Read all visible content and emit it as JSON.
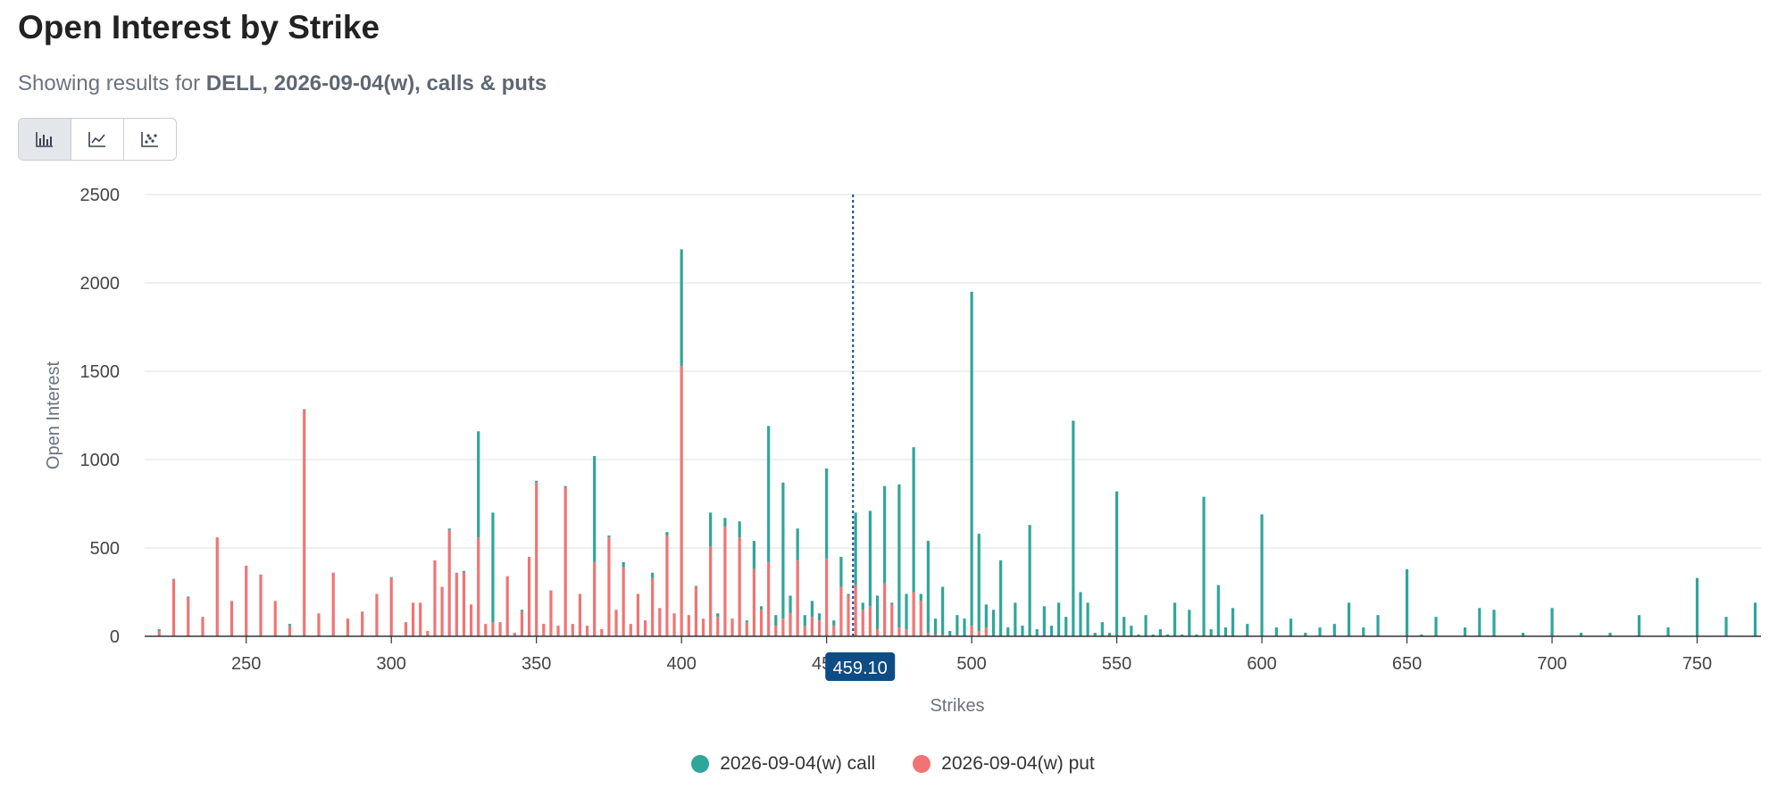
{
  "header": {
    "title": "Open Interest by Strike",
    "subtitle_prefix": "Showing results for",
    "subtitle_bold": "DELL, 2026-09-04(w), calls & puts"
  },
  "toolbar": {
    "buttons": [
      {
        "icon": "bar-chart-icon",
        "active": true
      },
      {
        "icon": "line-chart-icon",
        "active": false
      },
      {
        "icon": "scatter-chart-icon",
        "active": false
      }
    ]
  },
  "colors": {
    "call": "#2fa69a",
    "put": "#f07474",
    "marker": "#0d4c84"
  },
  "marker": {
    "value": 459.1,
    "label": "459.10"
  },
  "legend": {
    "call_label": "2026-09-04(w) call",
    "put_label": "2026-09-04(w) put"
  },
  "chart_data": {
    "type": "bar",
    "stacked": true,
    "xlabel": "Strikes",
    "ylabel": "Open Interest",
    "xlim": [
      215,
      772
    ],
    "ylim": [
      0,
      2500
    ],
    "x_ticks": [
      250,
      300,
      350,
      400,
      450,
      500,
      550,
      600,
      650,
      700,
      750
    ],
    "y_ticks": [
      0,
      500,
      1000,
      1500,
      2000,
      2500
    ],
    "grid": true,
    "legend_position": "bottom-center",
    "series": [
      {
        "name": "2026-09-04(w) put",
        "points": [
          [
            220,
            30
          ],
          [
            225,
            320
          ],
          [
            230,
            220
          ],
          [
            235,
            110
          ],
          [
            240,
            560
          ],
          [
            245,
            200
          ],
          [
            250,
            400
          ],
          [
            255,
            350
          ],
          [
            260,
            200
          ],
          [
            265,
            60
          ],
          [
            270,
            1280
          ],
          [
            275,
            130
          ],
          [
            280,
            360
          ],
          [
            285,
            100
          ],
          [
            290,
            140
          ],
          [
            295,
            240
          ],
          [
            300,
            330
          ],
          [
            305,
            80
          ],
          [
            307.5,
            190
          ],
          [
            310,
            190
          ],
          [
            312.5,
            30
          ],
          [
            315,
            430
          ],
          [
            317.5,
            280
          ],
          [
            320,
            600
          ],
          [
            322.5,
            360
          ],
          [
            325,
            360
          ],
          [
            327.5,
            180
          ],
          [
            330,
            560
          ],
          [
            332.5,
            70
          ],
          [
            335,
            80
          ],
          [
            337.5,
            80
          ],
          [
            340,
            340
          ],
          [
            342.5,
            20
          ],
          [
            345,
            140
          ],
          [
            347.5,
            450
          ],
          [
            350,
            870
          ],
          [
            352.5,
            70
          ],
          [
            355,
            260
          ],
          [
            357.5,
            60
          ],
          [
            360,
            840
          ],
          [
            362.5,
            70
          ],
          [
            365,
            240
          ],
          [
            367.5,
            60
          ],
          [
            370,
            420
          ],
          [
            372.5,
            40
          ],
          [
            375,
            560
          ],
          [
            377.5,
            150
          ],
          [
            380,
            390
          ],
          [
            382.5,
            70
          ],
          [
            385,
            240
          ],
          [
            387.5,
            90
          ],
          [
            390,
            330
          ],
          [
            392.5,
            160
          ],
          [
            395,
            570
          ],
          [
            397.5,
            130
          ],
          [
            400,
            1530
          ],
          [
            402.5,
            120
          ],
          [
            405,
            280
          ],
          [
            407.5,
            100
          ],
          [
            410,
            510
          ],
          [
            412.5,
            110
          ],
          [
            415,
            620
          ],
          [
            417.5,
            100
          ],
          [
            420,
            560
          ],
          [
            422.5,
            80
          ],
          [
            425,
            380
          ],
          [
            427.5,
            150
          ],
          [
            430,
            420
          ],
          [
            432.5,
            60
          ],
          [
            435,
            100
          ],
          [
            437.5,
            130
          ],
          [
            440,
            430
          ],
          [
            442.5,
            60
          ],
          [
            445,
            110
          ],
          [
            447.5,
            90
          ],
          [
            450,
            440
          ],
          [
            452.5,
            60
          ],
          [
            455,
            280
          ],
          [
            457.5,
            230
          ],
          [
            460,
            290
          ],
          [
            462.5,
            150
          ],
          [
            465,
            170
          ],
          [
            467.5,
            40
          ],
          [
            470,
            300
          ],
          [
            472.5,
            180
          ],
          [
            475,
            50
          ],
          [
            477.5,
            40
          ],
          [
            480,
            250
          ],
          [
            482.5,
            200
          ],
          [
            485,
            20
          ],
          [
            487.5,
            10
          ],
          [
            490,
            10
          ],
          [
            495,
            10
          ],
          [
            500,
            60
          ],
          [
            502.5,
            30
          ],
          [
            505,
            50
          ]
        ]
      },
      {
        "name": "2026-09-04(w) call",
        "points": [
          [
            220,
            10
          ],
          [
            225,
            5
          ],
          [
            230,
            5
          ],
          [
            265,
            10
          ],
          [
            270,
            5
          ],
          [
            300,
            5
          ],
          [
            320,
            10
          ],
          [
            325,
            10
          ],
          [
            330,
            600
          ],
          [
            335,
            620
          ],
          [
            345,
            10
          ],
          [
            350,
            10
          ],
          [
            360,
            10
          ],
          [
            370,
            600
          ],
          [
            375,
            10
          ],
          [
            380,
            30
          ],
          [
            390,
            30
          ],
          [
            395,
            20
          ],
          [
            400,
            660
          ],
          [
            405,
            5
          ],
          [
            410,
            190
          ],
          [
            412.5,
            20
          ],
          [
            415,
            50
          ],
          [
            420,
            90
          ],
          [
            422.5,
            10
          ],
          [
            425,
            160
          ],
          [
            427.5,
            20
          ],
          [
            430,
            770
          ],
          [
            432.5,
            60
          ],
          [
            435,
            770
          ],
          [
            437.5,
            100
          ],
          [
            440,
            180
          ],
          [
            442.5,
            60
          ],
          [
            445,
            90
          ],
          [
            447.5,
            40
          ],
          [
            450,
            510
          ],
          [
            452.5,
            30
          ],
          [
            455,
            170
          ],
          [
            457.5,
            10
          ],
          [
            460,
            410
          ],
          [
            462.5,
            40
          ],
          [
            465,
            540
          ],
          [
            467.5,
            190
          ],
          [
            470,
            550
          ],
          [
            472.5,
            10
          ],
          [
            475,
            810
          ],
          [
            477.5,
            200
          ],
          [
            480,
            820
          ],
          [
            482.5,
            40
          ],
          [
            485,
            520
          ],
          [
            487.5,
            90
          ],
          [
            490,
            270
          ],
          [
            492.5,
            30
          ],
          [
            495,
            110
          ],
          [
            497.5,
            100
          ],
          [
            500,
            1890
          ],
          [
            502.5,
            550
          ],
          [
            505,
            130
          ],
          [
            507.5,
            150
          ],
          [
            510,
            430
          ],
          [
            512.5,
            50
          ],
          [
            515,
            190
          ],
          [
            517.5,
            60
          ],
          [
            520,
            630
          ],
          [
            522.5,
            40
          ],
          [
            525,
            170
          ],
          [
            527.5,
            60
          ],
          [
            530,
            190
          ],
          [
            532.5,
            110
          ],
          [
            535,
            1220
          ],
          [
            537.5,
            250
          ],
          [
            540,
            190
          ],
          [
            542.5,
            20
          ],
          [
            545,
            80
          ],
          [
            547.5,
            20
          ],
          [
            550,
            820
          ],
          [
            552.5,
            110
          ],
          [
            555,
            60
          ],
          [
            557.5,
            10
          ],
          [
            560,
            120
          ],
          [
            562.5,
            10
          ],
          [
            565,
            40
          ],
          [
            567.5,
            10
          ],
          [
            570,
            190
          ],
          [
            572.5,
            10
          ],
          [
            575,
            150
          ],
          [
            577.5,
            10
          ],
          [
            580,
            790
          ],
          [
            582.5,
            40
          ],
          [
            585,
            290
          ],
          [
            587.5,
            50
          ],
          [
            590,
            160
          ],
          [
            595,
            70
          ],
          [
            600,
            690
          ],
          [
            605,
            50
          ],
          [
            610,
            100
          ],
          [
            615,
            20
          ],
          [
            620,
            50
          ],
          [
            625,
            70
          ],
          [
            630,
            190
          ],
          [
            635,
            50
          ],
          [
            640,
            120
          ],
          [
            650,
            380
          ],
          [
            655,
            10
          ],
          [
            660,
            110
          ],
          [
            670,
            50
          ],
          [
            675,
            160
          ],
          [
            680,
            150
          ],
          [
            690,
            20
          ],
          [
            700,
            160
          ],
          [
            710,
            20
          ],
          [
            720,
            20
          ],
          [
            730,
            120
          ],
          [
            740,
            50
          ],
          [
            750,
            330
          ],
          [
            760,
            110
          ],
          [
            770,
            190
          ]
        ]
      }
    ]
  }
}
